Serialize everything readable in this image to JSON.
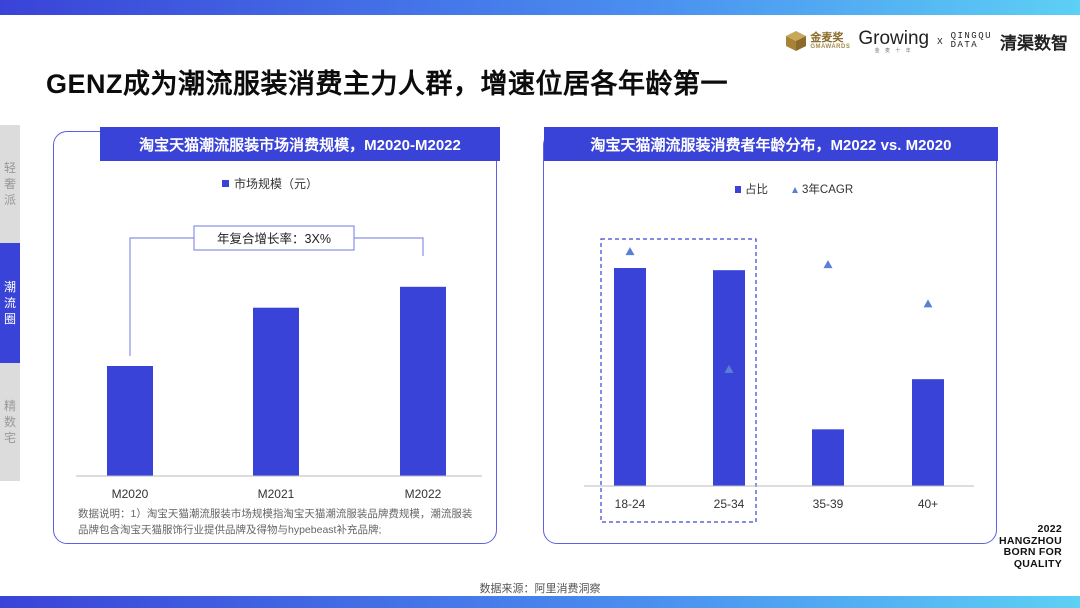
{
  "page": {
    "title": "GENZ成为潮流服装消费主力人群，增速位居各年龄第一",
    "source": "数据来源：阿里消费洞察",
    "brand_footer": [
      "2022",
      "HANGZHOU",
      "BORN FOR",
      "QUALITY"
    ]
  },
  "logos": {
    "jinmai": "金麦奖",
    "jinmai_sub": "GMAWARDS",
    "growing": "Growing",
    "growing_sub": "金 麦 十 年",
    "x": "x",
    "qingqu_line1": "QINGQU",
    "qingqu_line2": "DATA",
    "qingqu_cn": "清渠数智"
  },
  "side_nav": [
    {
      "label": "轻奢派",
      "active": false
    },
    {
      "label": "潮流圈",
      "active": true
    },
    {
      "label": "精数宅",
      "active": false
    }
  ],
  "colors": {
    "primary": "#3a43d8",
    "triangle": "#5b7fd6",
    "inactive_nav": "#dcdcdc"
  },
  "left_panel": {
    "header": "淘宝天猫潮流服装市场消费规模，M2020-M2022",
    "note": "数据说明：1）淘宝天猫潮流服装市场规模指淘宝天猫潮流服装品牌费规模，潮流服装品牌包含淘宝天猫服饰行业提供品牌及得物与hypebeast补充品牌;"
  },
  "right_panel": {
    "header": "淘宝天猫潮流服装消费者年龄分布，M2022 vs. M2020"
  },
  "chart_data": [
    {
      "type": "bar",
      "title": "淘宝天猫潮流服装市场消费规模，M2020-M2022",
      "categories": [
        "M2020",
        "M2021",
        "M2022"
      ],
      "series": [
        {
          "name": "市场规模（元）",
          "values": [
            1.0,
            1.53,
            1.72
          ]
        }
      ],
      "annotation": "年复合增长率：3X%",
      "ylim": [
        0,
        2.1
      ],
      "grid": false,
      "legend": "top-center"
    },
    {
      "type": "bar",
      "title": "淘宝天猫潮流服装消费者年龄分布，M2022 vs. M2020",
      "categories": [
        "18-24",
        "25-34",
        "35-39",
        "40+"
      ],
      "series": [
        {
          "name": "占比",
          "type": "bar",
          "values": [
            1.0,
            0.99,
            0.26,
            0.49
          ]
        },
        {
          "name": "3年CAGR",
          "type": "scatter",
          "marker": "triangle",
          "values": [
            1.05,
            0.51,
            0.99,
            0.81
          ]
        }
      ],
      "highlight_categories": [
        "18-24",
        "25-34"
      ],
      "ylim": [
        0,
        1.2
      ],
      "grid": false,
      "legend": "top-center"
    }
  ]
}
